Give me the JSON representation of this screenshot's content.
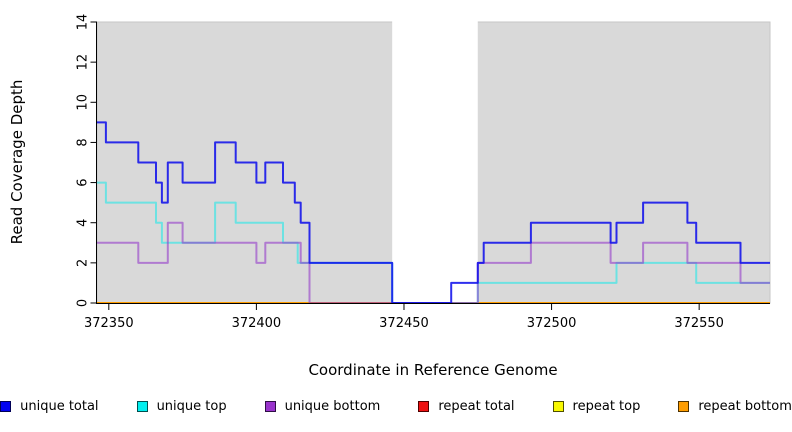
{
  "chart_data": {
    "type": "line",
    "subtype": "step-coverage",
    "title": "",
    "xlabel": "Coordinate in Reference Genome",
    "ylabel": "Read Coverage Depth",
    "xlim": [
      372346,
      372574
    ],
    "ylim": [
      0,
      14
    ],
    "xticks": [
      372350,
      372400,
      372450,
      372500,
      372550
    ],
    "yticks": [
      0,
      2,
      4,
      6,
      8,
      10,
      12,
      14
    ],
    "grid": false,
    "legend_position": "bottom",
    "plot_bg": "#d9d9d9",
    "plot_bg_edge": "#c6c6c6",
    "axis_color": "#000000",
    "masked_region": {
      "start": 372446,
      "end": 372475,
      "color": "#ffffff"
    },
    "series": [
      {
        "name": "repeat total",
        "stroke": "#dd2222",
        "width": 2,
        "steps": [
          [
            372346,
            0
          ]
        ]
      },
      {
        "name": "repeat top",
        "stroke": "#f5e800",
        "width": 2,
        "steps": [
          [
            372346,
            0
          ]
        ]
      },
      {
        "name": "repeat bottom",
        "stroke": "#ff9d00",
        "width": 2,
        "steps": [
          [
            372346,
            0
          ]
        ]
      },
      {
        "name": "unique top",
        "stroke": "rgba(0,235,235,0.5)",
        "width": 2,
        "steps": [
          [
            372346,
            6
          ],
          [
            372349,
            5
          ],
          [
            372366,
            4
          ],
          [
            372368,
            3
          ],
          [
            372386,
            5
          ],
          [
            372393,
            4
          ],
          [
            372409,
            3
          ],
          [
            372414,
            2
          ],
          [
            372446,
            0
          ],
          [
            372475,
            1
          ],
          [
            372522,
            2
          ],
          [
            372549,
            1
          ]
        ]
      },
      {
        "name": "unique bottom",
        "stroke": "rgba(148,59,201,0.6)",
        "width": 2,
        "steps": [
          [
            372346,
            3
          ],
          [
            372360,
            2
          ],
          [
            372370,
            4
          ],
          [
            372375,
            3
          ],
          [
            372400,
            2
          ],
          [
            372403,
            3
          ],
          [
            372415,
            2
          ],
          [
            372418,
            0
          ],
          [
            372475,
            2
          ],
          [
            372493,
            3
          ],
          [
            372520,
            2
          ],
          [
            372531,
            3
          ],
          [
            372546,
            2
          ],
          [
            372564,
            1
          ]
        ]
      },
      {
        "name": "unique total",
        "stroke": "rgba(10,10,235,0.85)",
        "width": 2,
        "steps": [
          [
            372346,
            9
          ],
          [
            372349,
            8
          ],
          [
            372360,
            7
          ],
          [
            372366,
            6
          ],
          [
            372368,
            5
          ],
          [
            372370,
            7
          ],
          [
            372375,
            6
          ],
          [
            372386,
            8
          ],
          [
            372393,
            7
          ],
          [
            372400,
            6
          ],
          [
            372403,
            7
          ],
          [
            372409,
            6
          ],
          [
            372413,
            5
          ],
          [
            372415,
            4
          ],
          [
            372418,
            2
          ],
          [
            372446,
            0
          ],
          [
            372466,
            1
          ],
          [
            372475,
            2
          ],
          [
            372477,
            3
          ],
          [
            372493,
            4
          ],
          [
            372520,
            3
          ],
          [
            372522,
            4
          ],
          [
            372531,
            5
          ],
          [
            372546,
            4
          ],
          [
            372549,
            3
          ],
          [
            372564,
            2
          ]
        ]
      }
    ]
  },
  "legend": {
    "items": [
      {
        "label": "unique total",
        "fill": "#0202f0",
        "border": "#000055"
      },
      {
        "label": "unique top",
        "fill": "#00eeee",
        "border": "#004f4f"
      },
      {
        "label": "unique bottom",
        "fill": "#9933cc",
        "border": "#2e0f45"
      },
      {
        "label": "repeat total",
        "fill": "#ee1111",
        "border": "#4f0000"
      },
      {
        "label": "repeat top",
        "fill": "#f8f800",
        "border": "#4f4f00"
      },
      {
        "label": "repeat bottom",
        "fill": "#ff9d00",
        "border": "#4f3200"
      }
    ]
  }
}
